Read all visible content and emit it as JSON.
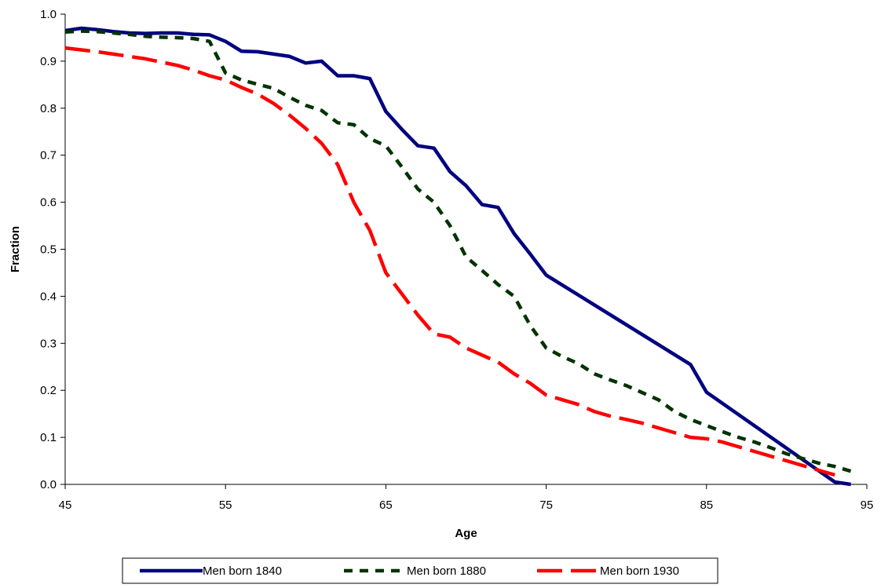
{
  "chart_data": {
    "type": "line",
    "title": "",
    "xlabel": "Age",
    "ylabel": "Fraction",
    "xlim": [
      45,
      95
    ],
    "ylim": [
      0.0,
      1.0
    ],
    "xticks": [
      "45",
      "55",
      "65",
      "75",
      "85",
      "95"
    ],
    "yticks": [
      "0.0",
      "0.1",
      "0.2",
      "0.3",
      "0.4",
      "0.5",
      "0.6",
      "0.7",
      "0.8",
      "0.9",
      "1.0"
    ],
    "grid": false,
    "legend_position": "bottom",
    "series": [
      {
        "name": "Men born 1840",
        "color": "#000080",
        "style": "solid",
        "x": [
          45,
          46,
          47,
          48,
          49,
          50,
          51,
          52,
          53,
          54,
          55,
          56,
          57,
          58,
          59,
          60,
          61,
          62,
          63,
          64,
          65,
          66,
          67,
          68,
          69,
          70,
          71,
          72,
          73,
          74,
          75,
          84,
          85,
          93,
          94
        ],
        "y": [
          0.965,
          0.97,
          0.967,
          0.963,
          0.96,
          0.959,
          0.96,
          0.96,
          0.957,
          0.956,
          0.942,
          0.921,
          0.92,
          0.915,
          0.91,
          0.896,
          0.9,
          0.869,
          0.869,
          0.863,
          0.793,
          0.755,
          0.72,
          0.715,
          0.665,
          0.635,
          0.595,
          0.589,
          0.533,
          0.49,
          0.445,
          0.255,
          0.196,
          0.005,
          0.0
        ]
      },
      {
        "name": "Men born 1880",
        "color": "#003300",
        "style": "dashed",
        "x": [
          45,
          46,
          47,
          48,
          49,
          50,
          51,
          52,
          53,
          54,
          55,
          56,
          57,
          58,
          59,
          60,
          61,
          62,
          63,
          64,
          65,
          66,
          67,
          68,
          69,
          70,
          71,
          72,
          73,
          74,
          75,
          76,
          77,
          78,
          79,
          80,
          81,
          82,
          83,
          84,
          85,
          86,
          87,
          88,
          89,
          90,
          91,
          92,
          93,
          94
        ],
        "y": [
          0.962,
          0.964,
          0.963,
          0.96,
          0.957,
          0.953,
          0.951,
          0.95,
          0.948,
          0.942,
          0.875,
          0.86,
          0.851,
          0.842,
          0.823,
          0.806,
          0.795,
          0.769,
          0.765,
          0.735,
          0.72,
          0.675,
          0.628,
          0.6,
          0.55,
          0.484,
          0.455,
          0.425,
          0.4,
          0.338,
          0.29,
          0.272,
          0.257,
          0.235,
          0.222,
          0.21,
          0.195,
          0.18,
          0.155,
          0.138,
          0.125,
          0.112,
          0.1,
          0.09,
          0.078,
          0.065,
          0.055,
          0.045,
          0.038,
          0.028
        ]
      },
      {
        "name": "Men born 1930",
        "color": "#ff0000",
        "style": "dashed",
        "x": [
          45,
          46,
          47,
          48,
          49,
          50,
          51,
          52,
          53,
          54,
          55,
          56,
          57,
          58,
          59,
          60,
          61,
          62,
          63,
          64,
          65,
          66,
          67,
          68,
          69,
          70,
          71,
          72,
          73,
          74,
          75,
          76,
          77,
          78,
          79,
          80,
          81,
          82,
          83,
          84,
          85,
          86,
          87,
          88,
          89,
          90,
          91,
          92,
          93
        ],
        "y": [
          0.928,
          0.924,
          0.92,
          0.915,
          0.91,
          0.905,
          0.898,
          0.891,
          0.881,
          0.869,
          0.86,
          0.844,
          0.83,
          0.81,
          0.785,
          0.757,
          0.725,
          0.68,
          0.6,
          0.54,
          0.45,
          0.405,
          0.36,
          0.32,
          0.313,
          0.29,
          0.275,
          0.26,
          0.235,
          0.215,
          0.19,
          0.18,
          0.17,
          0.155,
          0.145,
          0.138,
          0.13,
          0.12,
          0.11,
          0.1,
          0.097,
          0.09,
          0.08,
          0.07,
          0.06,
          0.05,
          0.04,
          0.03,
          0.02
        ]
      }
    ]
  }
}
